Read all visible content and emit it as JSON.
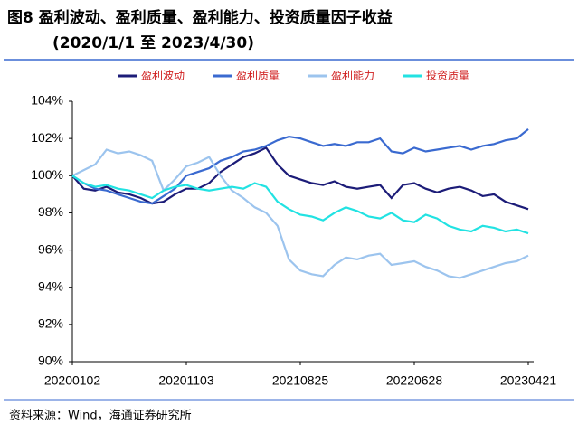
{
  "chart_data": {
    "type": "line",
    "title": "图8 盈利波动、盈利质量、盈利能力、投资质量因子收益",
    "subtitle": "(2020/1/1 至 2023/4/30)",
    "note": "资料来源：Wind，海通证券研究所",
    "categories": [
      "20200102",
      null,
      null,
      null,
      null,
      null,
      null,
      null,
      null,
      null,
      "20201103",
      null,
      null,
      null,
      null,
      null,
      null,
      null,
      null,
      null,
      "20210825",
      null,
      null,
      null,
      null,
      null,
      null,
      null,
      null,
      null,
      "20220628",
      null,
      null,
      null,
      null,
      null,
      null,
      null,
      null,
      null,
      "20230421"
    ],
    "ylim": [
      90,
      104
    ],
    "yticks": [
      {
        "value": 90,
        "label": "90%"
      },
      {
        "value": 92,
        "label": "92%"
      },
      {
        "value": 94,
        "label": "94%"
      },
      {
        "value": 96,
        "label": "96%"
      },
      {
        "value": 98,
        "label": "98%"
      },
      {
        "value": 100,
        "label": "100%"
      },
      {
        "value": 102,
        "label": "102%"
      },
      {
        "value": 104,
        "label": "104%"
      }
    ],
    "legend": "top",
    "series": [
      {
        "name": "盈利波动",
        "color": "#1c1c78",
        "values": [
          100,
          99.3,
          99.2,
          99.4,
          99.1,
          99.0,
          98.8,
          98.5,
          98.6,
          99.0,
          99.3,
          99.3,
          99.6,
          100.2,
          100.6,
          101.0,
          101.2,
          101.5,
          100.6,
          100.0,
          99.8,
          99.6,
          99.5,
          99.7,
          99.4,
          99.3,
          99.4,
          99.5,
          98.8,
          99.5,
          99.6,
          99.3,
          99.1,
          99.3,
          99.4,
          99.2,
          98.9,
          99.0,
          98.6,
          98.4,
          98.2
        ]
      },
      {
        "name": "盈利质量",
        "color": "#3a6ad0",
        "values": [
          100,
          99.6,
          99.3,
          99.2,
          99.0,
          98.8,
          98.6,
          98.5,
          98.9,
          99.3,
          100.0,
          100.2,
          100.4,
          100.8,
          101.0,
          101.3,
          101.4,
          101.6,
          101.9,
          102.1,
          102.0,
          101.8,
          101.6,
          101.7,
          101.6,
          101.8,
          101.8,
          102.0,
          101.3,
          101.2,
          101.5,
          101.3,
          101.4,
          101.5,
          101.6,
          101.4,
          101.6,
          101.7,
          101.9,
          102.0,
          102.5
        ]
      },
      {
        "name": "盈利能力",
        "color": "#9cc4ee",
        "values": [
          100,
          100.3,
          100.6,
          101.4,
          101.2,
          101.3,
          101.1,
          100.8,
          99.2,
          99.8,
          100.5,
          100.7,
          101.0,
          100.0,
          99.2,
          98.8,
          98.3,
          98.0,
          97.3,
          95.5,
          94.9,
          94.7,
          94.6,
          95.2,
          95.6,
          95.5,
          95.7,
          95.8,
          95.2,
          95.3,
          95.4,
          95.1,
          94.9,
          94.6,
          94.5,
          94.7,
          94.9,
          95.1,
          95.3,
          95.4,
          95.7
        ]
      },
      {
        "name": "投资质量",
        "color": "#22e2e2",
        "values": [
          100,
          99.6,
          99.4,
          99.5,
          99.3,
          99.2,
          99.0,
          98.8,
          99.2,
          99.4,
          99.5,
          99.3,
          99.2,
          99.3,
          99.4,
          99.3,
          99.6,
          99.4,
          98.6,
          98.2,
          97.9,
          97.8,
          97.6,
          98.0,
          98.3,
          98.1,
          97.8,
          97.7,
          98.0,
          97.6,
          97.5,
          97.9,
          97.7,
          97.3,
          97.1,
          97.0,
          97.3,
          97.2,
          97.0,
          97.1,
          96.9
        ]
      }
    ]
  }
}
